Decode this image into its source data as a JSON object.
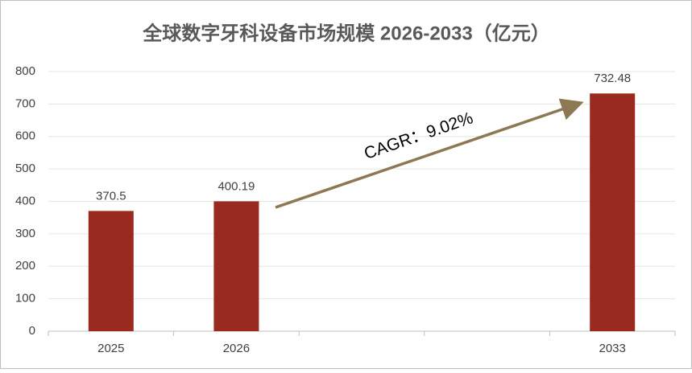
{
  "chart_data": {
    "type": "bar",
    "title": "全球数字牙科设备市场规模 2026-2033（亿元）",
    "categories": [
      "2025",
      "2026",
      null,
      null,
      "2033"
    ],
    "values": [
      370.5,
      400.19,
      null,
      null,
      732.48
    ],
    "color": "#9a2a1f",
    "ylim": [
      0,
      800
    ],
    "yticks": [
      0,
      100,
      200,
      300,
      400,
      500,
      600,
      700,
      800
    ],
    "grid": true,
    "annotation": "CAGR：9.02%"
  }
}
